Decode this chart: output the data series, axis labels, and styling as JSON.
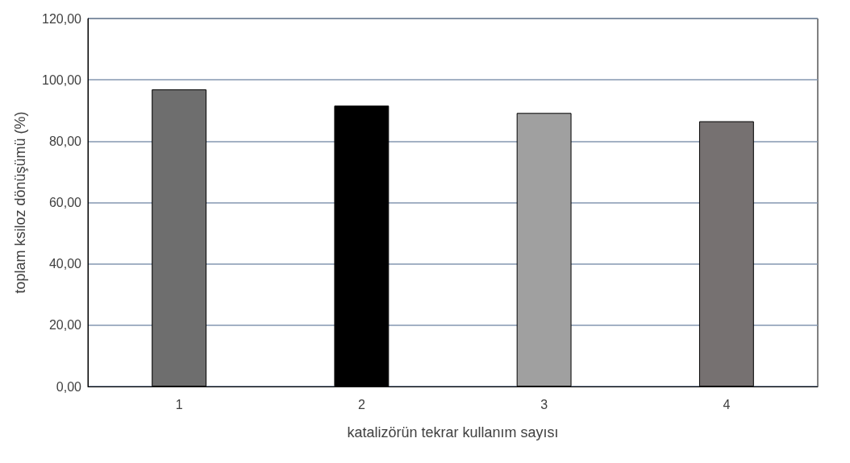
{
  "chart_data": {
    "type": "bar",
    "xlabel": "katalizörün tekrar kullanım sayısı",
    "ylabel": "toplam ksiloz dönüşümü (%)",
    "categories": [
      "1",
      "2",
      "3",
      "4"
    ],
    "values": [
      96.9,
      91.6,
      89.2,
      86.5
    ],
    "colors": [
      "#6e6e6e",
      "#000000",
      "#a0a0a0",
      "#767171"
    ],
    "ylim": [
      0,
      120
    ],
    "yticks": [
      {
        "value": 0,
        "label": "0,00"
      },
      {
        "value": 20,
        "label": "20,00"
      },
      {
        "value": 40,
        "label": "40,00"
      },
      {
        "value": 60,
        "label": "60,00"
      },
      {
        "value": 80,
        "label": "80,00"
      },
      {
        "value": 100,
        "label": "100,00"
      },
      {
        "value": 120,
        "label": "120,00"
      }
    ],
    "grid": "y"
  }
}
